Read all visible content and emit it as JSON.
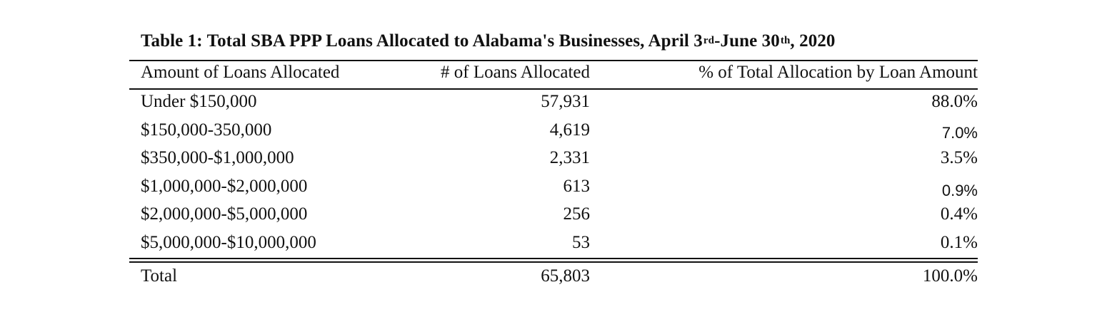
{
  "title": {
    "prefix": "Table 1: Total SBA PPP Loans Allocated to Alabama's Businesses, April 3",
    "sup1": "rd",
    "middle": "-June 30",
    "sup2": "th",
    "suffix": ", 2020"
  },
  "columns": [
    "Amount of Loans Allocated",
    "# of Loans Allocated",
    "% of Total Allocation by Loan Amount"
  ],
  "rows": [
    {
      "amount": "Under $150,000",
      "count": "57,931",
      "percent": "88.0%"
    },
    {
      "amount": "$150,000-350,000",
      "count": "4,619",
      "percent": "7.0%"
    },
    {
      "amount": "$350,000-$1,000,000",
      "count": "2,331",
      "percent": "3.5%"
    },
    {
      "amount": "$1,000,000-$2,000,000",
      "count": "613",
      "percent": "0.9%"
    },
    {
      "amount": "$2,000,000-$5,000,000",
      "count": "256",
      "percent": "0.4%"
    },
    {
      "amount": "$5,000,000-$10,000,000",
      "count": "53",
      "percent": "0.1%"
    }
  ],
  "total": {
    "label": "Total",
    "count": "65,803",
    "percent": "100.0%"
  }
}
